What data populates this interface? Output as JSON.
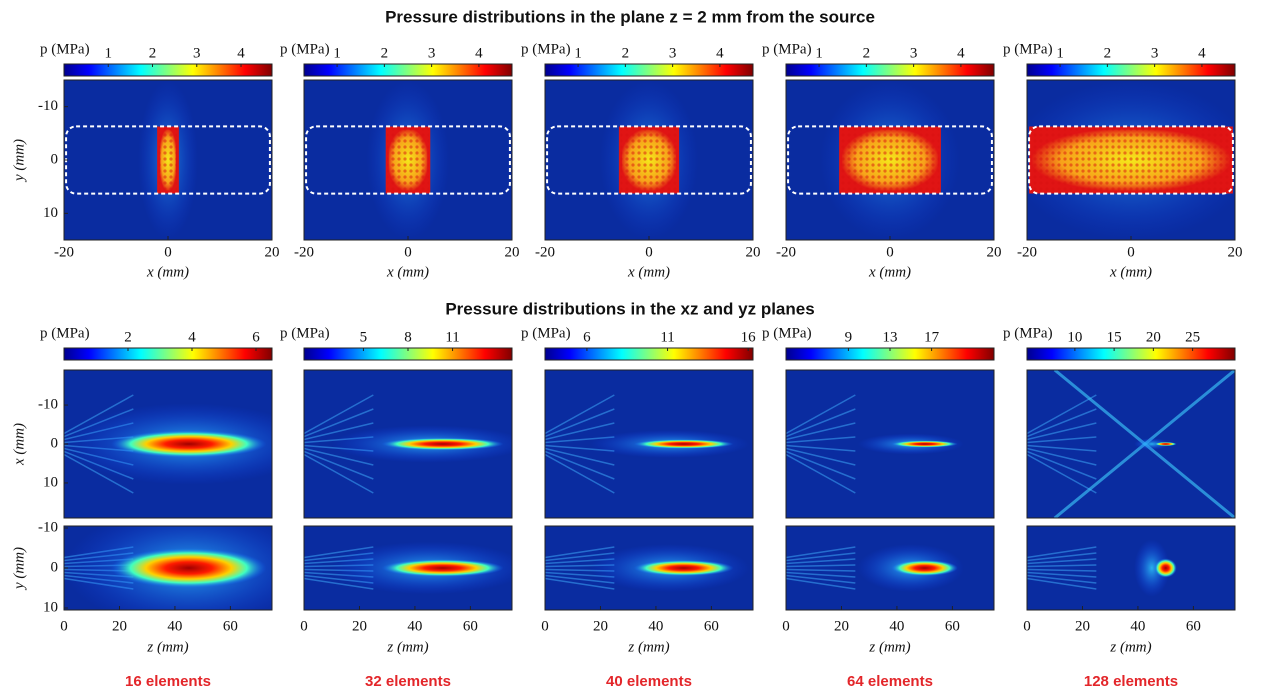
{
  "titles": {
    "top": "Pressure distributions in the plane z = 2 mm from the source",
    "bottom": "Pressure distributions in the xz and yz planes"
  },
  "colorbar_label": "p (MPa)",
  "rows": [
    {
      "xlabel": "x (mm)",
      "ylabel": "y (mm)",
      "xlim": [
        -20,
        20
      ],
      "xticks": [
        -20,
        0,
        20
      ],
      "ylim": [
        -15,
        15
      ],
      "yticks": [
        -10,
        0,
        10
      ],
      "colorbars": [
        {
          "lim": [
            0,
            4.7
          ],
          "ticks": [
            1,
            2,
            3,
            4
          ]
        },
        {
          "lim": [
            0.3,
            4.7
          ],
          "ticks": [
            1,
            2,
            3,
            4
          ]
        },
        {
          "lim": [
            0.3,
            4.7
          ],
          "ticks": [
            1,
            2,
            3,
            4
          ]
        },
        {
          "lim": [
            0.3,
            4.7
          ],
          "ticks": [
            1,
            2,
            3,
            4
          ]
        },
        {
          "lim": [
            0.3,
            4.7
          ],
          "ticks": [
            1,
            2,
            3,
            4
          ]
        }
      ]
    },
    {
      "ylabel": "x (mm)",
      "xlim": [
        0,
        75
      ],
      "ylim": [
        -19,
        19
      ],
      "yticks": [
        -10,
        0,
        10
      ],
      "colorbars": [
        {
          "lim": [
            0,
            6.5
          ],
          "ticks": [
            2,
            4,
            6
          ]
        },
        {
          "lim": [
            1,
            15
          ],
          "ticks": [
            5,
            8,
            11
          ]
        },
        {
          "lim": [
            3.4,
            16.3
          ],
          "ticks": [
            6,
            11,
            16
          ]
        },
        {
          "lim": [
            3,
            23
          ],
          "ticks": [
            9,
            13,
            17
          ]
        },
        {
          "lim": [
            3.9,
            30.4
          ],
          "ticks": [
            10,
            15,
            20,
            25
          ]
        }
      ]
    },
    {
      "xlabel": "z (mm)",
      "ylabel": "y (mm)",
      "xlim": [
        0,
        75
      ],
      "xticks": [
        0,
        20,
        40,
        60
      ],
      "ylim": [
        -10.5,
        10.5
      ],
      "yticks": [
        -10,
        0,
        10
      ]
    }
  ],
  "columns": [
    "16 elements",
    "32 elements",
    "40 elements",
    "64 elements",
    "128 elements"
  ]
}
